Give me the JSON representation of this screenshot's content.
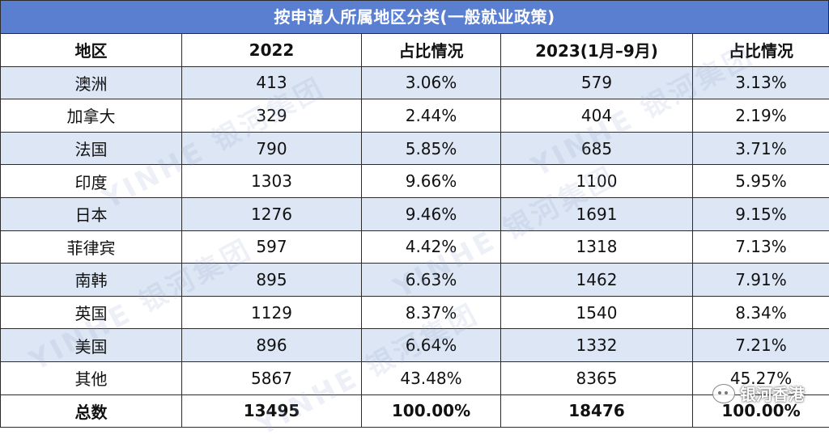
{
  "title": "按申请人所属地区分类(一般就业政策)",
  "headers": [
    "地区",
    "2022",
    "占比情况",
    "2023(1月–9月)",
    "占比情况"
  ],
  "rows": [
    [
      "澳洲",
      "413",
      "3.06%",
      "579",
      "3.13%"
    ],
    [
      "加拿大",
      "329",
      "2.44%",
      "404",
      "2.19%"
    ],
    [
      "法国",
      "790",
      "5.85%",
      "685",
      "3.71%"
    ],
    [
      "印度",
      "1303",
      "9.66%",
      "1100",
      "5.95%"
    ],
    [
      "日本",
      "1276",
      "9.46%",
      "1691",
      "9.15%"
    ],
    [
      "菲律宾",
      "597",
      "4.42%",
      "1318",
      "7.13%"
    ],
    [
      "南韩",
      "895",
      "6.63%",
      "1462",
      "7.91%"
    ],
    [
      "英国",
      "1129",
      "8.37%",
      "1540",
      "8.34%"
    ],
    [
      "美国",
      "896",
      "6.64%",
      "1332",
      "7.21%"
    ],
    [
      "其他",
      "5867",
      "43.48%",
      "8365",
      "45.27%"
    ]
  ],
  "total": [
    "总数",
    "13495",
    "100.00%",
    "18476",
    "100.00%"
  ],
  "watermark": "YINHE 银河集团",
  "badge": "银河香港",
  "colors": {
    "title_bg": "#5b7fd0",
    "alt_row": "#dce6f4"
  }
}
